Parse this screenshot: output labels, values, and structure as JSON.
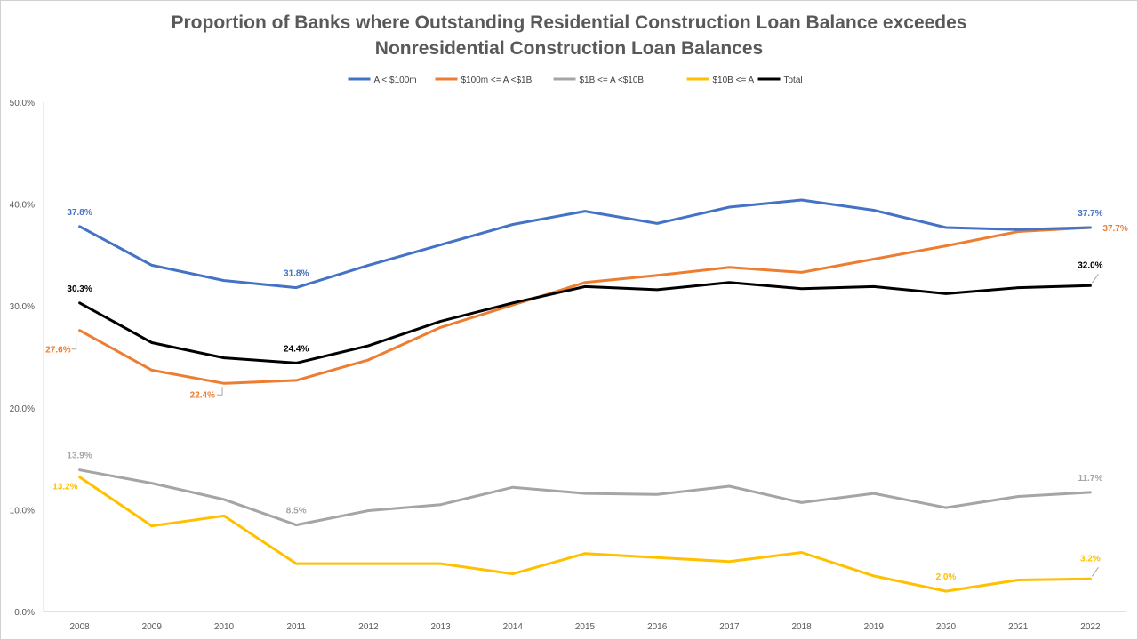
{
  "chart_data": {
    "type": "line",
    "title_lines": [
      "Proportion of Banks where Outstanding Residential Construction Loan Balance exceedes",
      "Nonresidential Construction Loan Balances"
    ],
    "legend_position": "top",
    "grid": false,
    "categories": [
      "2008",
      "2009",
      "2010",
      "2011",
      "2012",
      "2013",
      "2014",
      "2015",
      "2016",
      "2017",
      "2018",
      "2019",
      "2020",
      "2021",
      "2022"
    ],
    "ylim": [
      0,
      50
    ],
    "ytick_labels": [
      "0.0%",
      "10.0%",
      "20.0%",
      "30.0%",
      "40.0%",
      "50.0%"
    ],
    "series": [
      {
        "name": "A < $100m",
        "color": "#4472C4",
        "values": [
          37.8,
          34.0,
          32.5,
          31.8,
          34.0,
          36.0,
          38.0,
          39.3,
          38.1,
          39.7,
          40.4,
          39.4,
          37.7,
          37.5,
          37.7
        ],
        "labels": [
          {
            "index": 0,
            "text": "37.8%",
            "pos": "above"
          },
          {
            "index": 3,
            "text": "31.8%",
            "pos": "above"
          },
          {
            "index": 14,
            "text": "37.7%",
            "pos": "above"
          }
        ]
      },
      {
        "name": "$100m <= A <$1B",
        "color": "#ED7D31",
        "values": [
          27.6,
          23.7,
          22.4,
          22.7,
          24.7,
          27.9,
          30.1,
          32.3,
          33.0,
          33.8,
          33.3,
          34.6,
          35.9,
          37.3,
          37.7
        ],
        "labels": [
          {
            "index": 0,
            "text": "27.6%",
            "pos": "left-leader"
          },
          {
            "index": 2,
            "text": "22.4%",
            "pos": "below-leader"
          },
          {
            "index": 14,
            "text": "37.7%",
            "pos": "right"
          }
        ]
      },
      {
        "name": "$1B <= A <$10B",
        "color": "#A5A5A5",
        "values": [
          13.9,
          12.6,
          11.0,
          8.5,
          9.9,
          10.5,
          12.2,
          11.6,
          11.5,
          12.3,
          10.7,
          11.6,
          10.2,
          11.3,
          11.7
        ],
        "labels": [
          {
            "index": 0,
            "text": "13.9%",
            "pos": "above"
          },
          {
            "index": 3,
            "text": "8.5%",
            "pos": "above"
          },
          {
            "index": 14,
            "text": "11.7%",
            "pos": "above"
          }
        ]
      },
      {
        "name": "$10B <= A",
        "color": "#FFC000",
        "values": [
          13.2,
          8.4,
          9.4,
          4.7,
          4.7,
          4.7,
          3.7,
          5.7,
          5.3,
          4.9,
          5.8,
          3.5,
          2.0,
          3.1,
          3.2
        ],
        "labels": [
          {
            "index": 0,
            "text": "13.2%",
            "pos": "below-left"
          },
          {
            "index": 12,
            "text": "2.0%",
            "pos": "above"
          },
          {
            "index": 14,
            "text": "3.2%",
            "pos": "above-leader"
          }
        ]
      },
      {
        "name": "Total",
        "color": "#000000",
        "values": [
          30.3,
          26.4,
          24.9,
          24.4,
          26.1,
          28.5,
          30.3,
          31.9,
          31.6,
          32.3,
          31.7,
          31.9,
          31.2,
          31.8,
          32.0
        ],
        "labels": [
          {
            "index": 0,
            "text": "30.3%",
            "pos": "above"
          },
          {
            "index": 3,
            "text": "24.4%",
            "pos": "above"
          },
          {
            "index": 14,
            "text": "32.0%",
            "pos": "above-leader"
          }
        ]
      }
    ]
  }
}
